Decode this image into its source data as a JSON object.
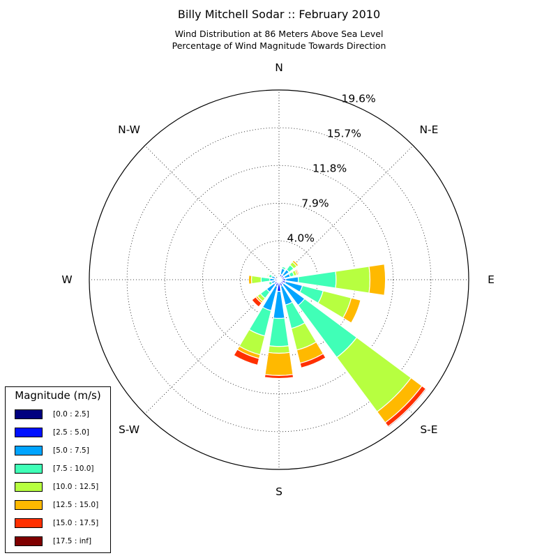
{
  "chart_data": {
    "type": "windrose",
    "title": "Billy Mitchell Sodar :: February 2010",
    "subtitle_lines": [
      "Wind Distribution at 86 Meters Above Sea Level",
      "Percentage of Wind Magnitude Towards Direction"
    ],
    "radial_ticks": [
      "4.0%",
      "7.9%",
      "11.8%",
      "15.7%",
      "19.6%"
    ],
    "radial_values": [
      4.0,
      7.9,
      11.8,
      15.7,
      19.6
    ],
    "r_max": 19.6,
    "direction_labels": [
      "N",
      "N-E",
      "E",
      "S-E",
      "S",
      "S-W",
      "W",
      "N-W"
    ],
    "legend_title": "Magnitude (m/s)",
    "bins": [
      {
        "label": "[0.0 : 2.5]",
        "color": "#00007f"
      },
      {
        "label": "[2.5 : 5.0]",
        "color": "#0010ff"
      },
      {
        "label": "[5.0 : 7.5]",
        "color": "#00a4ff"
      },
      {
        "label": "[7.5 : 10.0]",
        "color": "#40ffb7"
      },
      {
        "label": "[10.0 : 12.5]",
        "color": "#b7ff40"
      },
      {
        "label": "[12.5 : 15.0]",
        "color": "#ffb900"
      },
      {
        "label": "[15.0 : 17.5]",
        "color": "#ff3000"
      },
      {
        "label": "[17.5 : inf]",
        "color": "#7f0000"
      }
    ],
    "sectors": [
      {
        "direction_deg": 0,
        "values": [
          0.25,
          0.2,
          0.0,
          0.0,
          0.0,
          0.0,
          0.0,
          0.0
        ]
      },
      {
        "direction_deg": 22.5,
        "values": [
          0.2,
          0.4,
          0.6,
          0.2,
          0.0,
          0.0,
          0.0,
          0.0
        ]
      },
      {
        "direction_deg": 45,
        "values": [
          0.2,
          0.4,
          0.7,
          0.6,
          0.4,
          0.2,
          0.0,
          0.0
        ]
      },
      {
        "direction_deg": 67.5,
        "values": [
          0.2,
          0.4,
          0.6,
          0.4,
          0.3,
          0.15,
          0.1,
          0.0
        ]
      },
      {
        "direction_deg": 90,
        "values": [
          0.2,
          0.5,
          1.3,
          3.9,
          3.5,
          1.6,
          0.0,
          0.0
        ]
      },
      {
        "direction_deg": 112.5,
        "values": [
          0.2,
          0.5,
          1.8,
          2.2,
          3.0,
          1.0,
          0.0,
          0.0
        ]
      },
      {
        "direction_deg": 135,
        "values": [
          0.2,
          0.4,
          2.7,
          6.7,
          7.0,
          1.4,
          0.5,
          0.1
        ]
      },
      {
        "direction_deg": 157.5,
        "values": [
          0.2,
          0.5,
          2.0,
          2.5,
          2.3,
          1.4,
          0.5,
          0.0
        ]
      },
      {
        "direction_deg": 180,
        "values": [
          0.3,
          0.9,
          2.8,
          2.9,
          0.7,
          2.3,
          0.3,
          0.0
        ]
      },
      {
        "direction_deg": 202.5,
        "values": [
          0.2,
          0.5,
          2.6,
          2.7,
          2.0,
          0.4,
          0.7,
          0.0
        ]
      },
      {
        "direction_deg": 225,
        "values": [
          0.2,
          0.4,
          1.0,
          0.8,
          0.4,
          0.2,
          0.5,
          0.0
        ]
      },
      {
        "direction_deg": 247.5,
        "values": [
          0.1,
          0.3,
          0.4,
          0.3,
          0.0,
          0.0,
          0.0,
          0.0
        ]
      },
      {
        "direction_deg": 270,
        "values": [
          0.15,
          0.3,
          0.5,
          0.9,
          1.0,
          0.3,
          0.0,
          0.0
        ]
      },
      {
        "direction_deg": 292.5,
        "values": [
          0.1,
          0.3,
          0.4,
          0.3,
          0.1,
          0.1,
          0.0,
          0.0
        ]
      },
      {
        "direction_deg": 315,
        "values": [
          0.1,
          0.15,
          0.0,
          0.0,
          0.0,
          0.0,
          0.0,
          0.0
        ]
      },
      {
        "direction_deg": 337.5,
        "values": [
          0.15,
          0.2,
          0.0,
          0.0,
          0.0,
          0.0,
          0.0,
          0.0
        ]
      }
    ],
    "grid": true,
    "legend_position": "bottom-left"
  }
}
